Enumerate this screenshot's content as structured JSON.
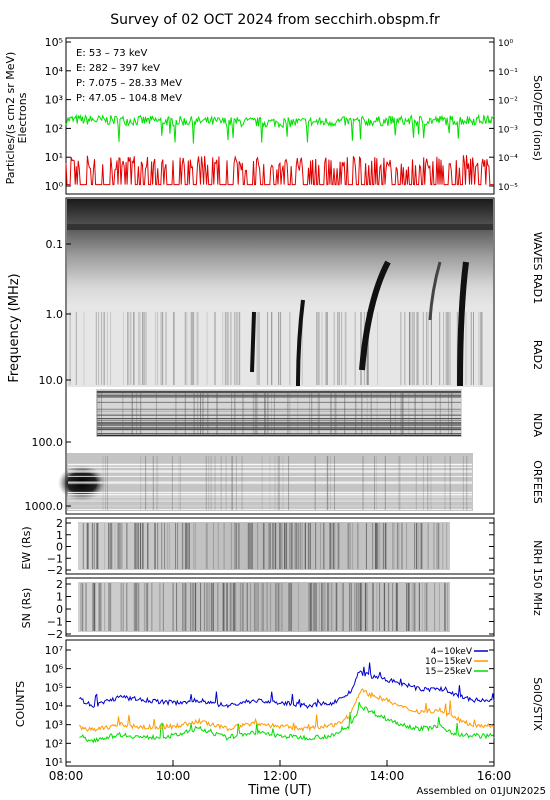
{
  "title": "Survey of 02 OCT 2024 from secchirh.obspm.fr",
  "footer": "Assembled on 01JUN2025",
  "xaxis": {
    "label": "Time (UT)",
    "ticks": [
      "08:00",
      "10:00",
      "12:00",
      "14:00",
      "16:00"
    ],
    "range_hours": [
      8,
      16
    ]
  },
  "epd": {
    "ylabel_left": "Particles/(s cm2 sr MeV)",
    "ylabel_left2": "Electrons",
    "ylabel_right": "SolO/EPD (ions)",
    "left_ticks": [
      "10⁰",
      "10¹",
      "10²",
      "10³",
      "10⁴",
      "10⁵"
    ],
    "right_ticks": [
      "10⁻⁵",
      "10⁻⁴",
      "10⁻³",
      "10⁻²",
      "10⁻¹",
      "10⁰"
    ],
    "legend": [
      {
        "label": "E: 53 – 73 keV",
        "color": "#00e000"
      },
      {
        "label": "E: 282 – 397 keV",
        "color": "#e00000"
      },
      {
        "label": "P: 7.075 – 28.33 MeV",
        "color": "#000000"
      },
      {
        "label": "P: 47.05 – 104.8 MeV",
        "color": "#0000cc"
      }
    ]
  },
  "spectrogram": {
    "ylabel": "Frequency (MHz)",
    "ticks": [
      "0.1",
      "1.0",
      "10.0",
      "100.0",
      "1000.0"
    ],
    "instruments": [
      "WAVES RAD1",
      "RAD2",
      "NDA",
      "ORFEES"
    ]
  },
  "nrh": {
    "label": "NRH 150 MHz",
    "ew_label": "EW (Rs)",
    "sn_label": "SN (Rs)",
    "ticks": [
      "2",
      "1",
      "0",
      "−1",
      "−2"
    ]
  },
  "stix": {
    "ylabel": "COUNTS",
    "instrument": "SolO/STIX",
    "ticks": [
      "10¹",
      "10²",
      "10³",
      "10⁴",
      "10⁵",
      "10⁶",
      "10⁷"
    ],
    "legend": [
      {
        "label": "4−10keV",
        "color": "#0000cc"
      },
      {
        "label": "10−15keV",
        "color": "#ff9900"
      },
      {
        "label": "15−25keV",
        "color": "#00dd00"
      }
    ]
  },
  "chart_data": [
    {
      "type": "line",
      "panel": "SolO/EPD",
      "yscale": "log",
      "ylim": [
        1,
        100000
      ],
      "x": [
        8,
        9,
        10,
        11,
        12,
        13,
        14,
        15,
        16
      ],
      "series": [
        {
          "name": "E: 53 – 73 keV",
          "values": [
            200,
            190,
            180,
            170,
            160,
            170,
            180,
            190,
            200
          ]
        },
        {
          "name": "E: 282 – 397 keV",
          "values": [
            6,
            5,
            5,
            5,
            4,
            5,
            5,
            5,
            6
          ]
        }
      ]
    },
    {
      "type": "line",
      "panel": "SolO/STIX",
      "yscale": "log",
      "ylim": [
        10,
        10000000
      ],
      "x": [
        8,
        8.5,
        9,
        9.5,
        10,
        10.5,
        11,
        11.5,
        12,
        12.5,
        13,
        13.3,
        13.5,
        13.7,
        14,
        14.3,
        14.6,
        15,
        15.3,
        15.6,
        16
      ],
      "series": [
        {
          "name": "4−10keV",
          "values": [
            60000,
            10000,
            30000,
            20000,
            15000,
            20000,
            10000,
            20000,
            15000,
            10000,
            15000,
            50000,
            600000,
            400000,
            250000,
            150000,
            80000,
            80000,
            40000,
            20000,
            20000
          ]
        },
        {
          "name": "10−15keV",
          "values": [
            1200,
            500,
            1000,
            700,
            800,
            1500,
            600,
            1200,
            800,
            600,
            900,
            3000,
            70000,
            40000,
            20000,
            8000,
            5000,
            6000,
            2000,
            1000,
            900
          ]
        },
        {
          "name": "15−25keV",
          "values": [
            200,
            150,
            300,
            200,
            250,
            600,
            200,
            400,
            250,
            200,
            250,
            800,
            10000,
            5000,
            2000,
            1000,
            600,
            800,
            300,
            250,
            250
          ]
        }
      ]
    }
  ]
}
